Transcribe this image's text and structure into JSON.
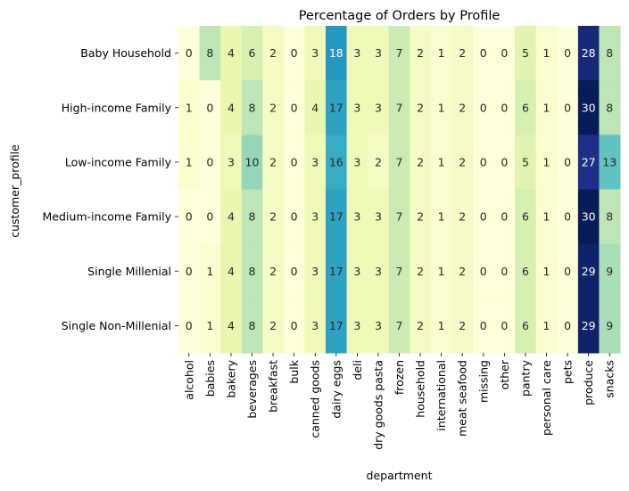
{
  "chart_data": {
    "type": "heatmap",
    "title": "Percentage of Orders by Profile",
    "xlabel": "department",
    "ylabel": "customer_profile",
    "colormap": "YlGnBu",
    "value_range": [
      0,
      30
    ],
    "colorbar": false,
    "x": [
      "alcohol",
      "babies",
      "bakery",
      "beverages",
      "breakfast",
      "bulk",
      "canned goods",
      "dairy eggs",
      "deli",
      "dry goods pasta",
      "frozen",
      "household",
      "international",
      "meat seafood",
      "missing",
      "other",
      "pantry",
      "personal care",
      "pets",
      "produce",
      "snacks"
    ],
    "y": [
      "Baby Household",
      "High-income Family",
      "Low-income Family",
      "Medium-income Family",
      "Single Millenial",
      "Single Non-Millenial"
    ],
    "values": [
      [
        0,
        8,
        4,
        6,
        2,
        0,
        3,
        18,
        3,
        3,
        7,
        2,
        1,
        2,
        0,
        0,
        5,
        1,
        0,
        28,
        8
      ],
      [
        1,
        0,
        4,
        8,
        2,
        0,
        4,
        17,
        3,
        3,
        7,
        2,
        1,
        2,
        0,
        0,
        6,
        1,
        0,
        30,
        8
      ],
      [
        1,
        0,
        3,
        10,
        2,
        0,
        3,
        16,
        3,
        2,
        7,
        2,
        1,
        2,
        0,
        0,
        5,
        1,
        0,
        27,
        13
      ],
      [
        0,
        0,
        4,
        8,
        2,
        0,
        3,
        17,
        3,
        3,
        7,
        2,
        1,
        2,
        0,
        0,
        6,
        1,
        0,
        30,
        8
      ],
      [
        0,
        1,
        4,
        8,
        2,
        0,
        3,
        17,
        3,
        3,
        7,
        2,
        1,
        2,
        0,
        0,
        6,
        1,
        0,
        29,
        9
      ],
      [
        0,
        1,
        4,
        8,
        2,
        0,
        3,
        17,
        3,
        3,
        7,
        2,
        1,
        2,
        0,
        0,
        6,
        1,
        0,
        29,
        9
      ]
    ]
  }
}
